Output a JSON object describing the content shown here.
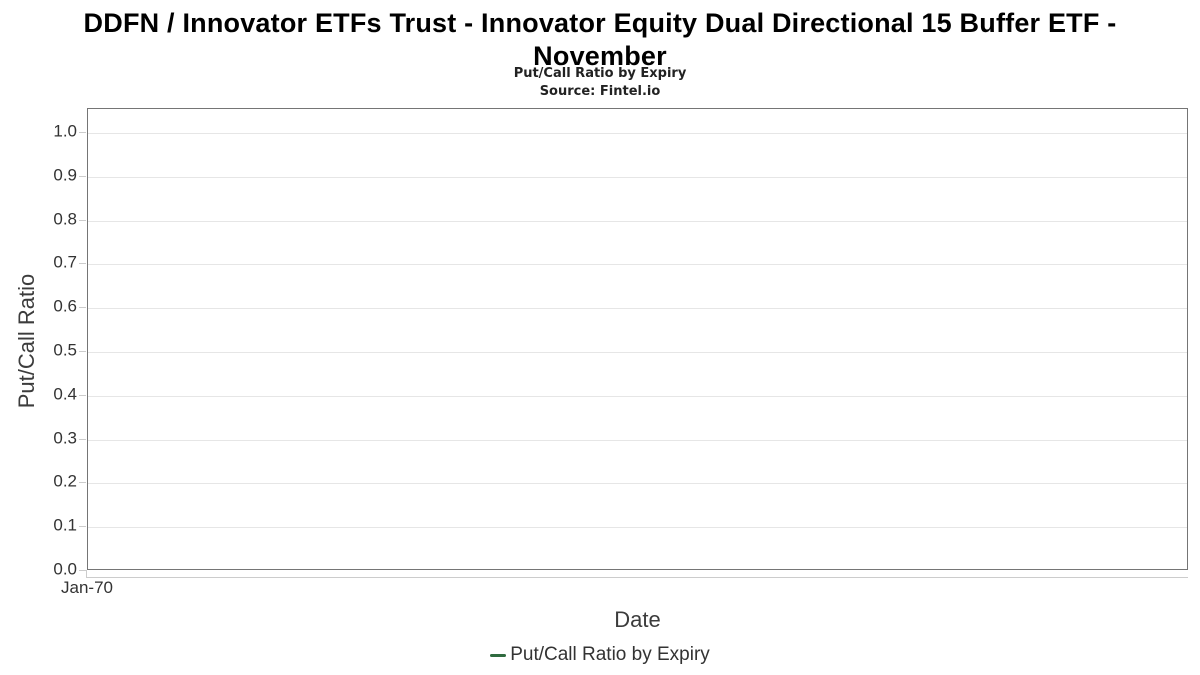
{
  "header": {
    "title": "DDFN / Innovator ETFs Trust - Innovator Equity Dual Directional 15 Buffer ETF - November",
    "subtitle": "Put/Call Ratio by Expiry",
    "source": "Source: Fintel.io"
  },
  "colors": {
    "series_green": "#2f6b3f",
    "gridline": "#e6e6e6",
    "axis_line": "#cccccc",
    "plot_border": "#757575",
    "label_text": "#333333",
    "title_text": "#000000"
  },
  "chart_data": {
    "type": "line",
    "title": "DDFN / Innovator ETFs Trust - Innovator Equity Dual Directional 15 Buffer ETF - November",
    "subtitle": "Put/Call Ratio by Expiry",
    "source": "Source: Fintel.io",
    "xlabel": "Date",
    "ylabel": "Put/Call Ratio",
    "ylim": [
      0.0,
      1.055
    ],
    "yticks": [
      0.0,
      0.1,
      0.2,
      0.3,
      0.4,
      0.5,
      0.6,
      0.7,
      0.8,
      0.9,
      1.0
    ],
    "ytick_labels": [
      "0.0",
      "0.1",
      "0.2",
      "0.3",
      "0.4",
      "0.5",
      "0.6",
      "0.7",
      "0.8",
      "0.9",
      "1.0"
    ],
    "xtick_labels": [
      "Jan-70"
    ],
    "grid": "horizontal-only",
    "legend_position": "bottom-center",
    "series": [
      {
        "name": "Put/Call Ratio by Expiry",
        "color": "#2f6b3f",
        "x": [],
        "values": []
      }
    ]
  }
}
